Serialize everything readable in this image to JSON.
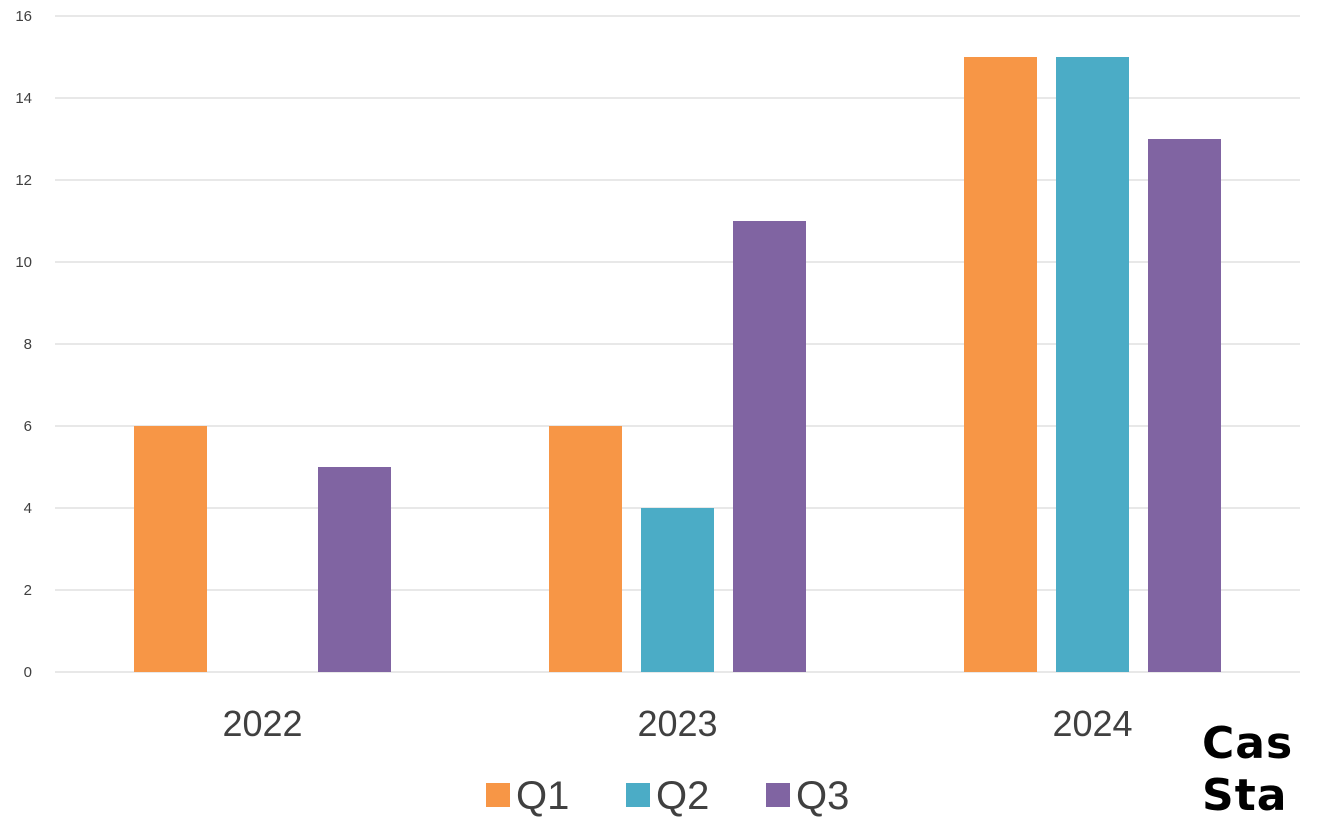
{
  "chart_data": {
    "type": "bar",
    "categories": [
      "2022",
      "2023",
      "2024"
    ],
    "series": [
      {
        "name": "Q1",
        "values": [
          6,
          6,
          15
        ],
        "color": "#F79646"
      },
      {
        "name": "Q2",
        "values": [
          0,
          4,
          15
        ],
        "color": "#4BACC6"
      },
      {
        "name": "Q3",
        "values": [
          5,
          11,
          13
        ],
        "color": "#8064A2"
      }
    ],
    "ylim": [
      0,
      16
    ],
    "yticks": [
      "0",
      "2",
      "4",
      "6",
      "8",
      "10",
      "12",
      "14",
      "16"
    ],
    "grid": true,
    "legend_position": "bottom"
  },
  "overlay_text": {
    "line1": "Cas",
    "line2": "Sta"
  }
}
